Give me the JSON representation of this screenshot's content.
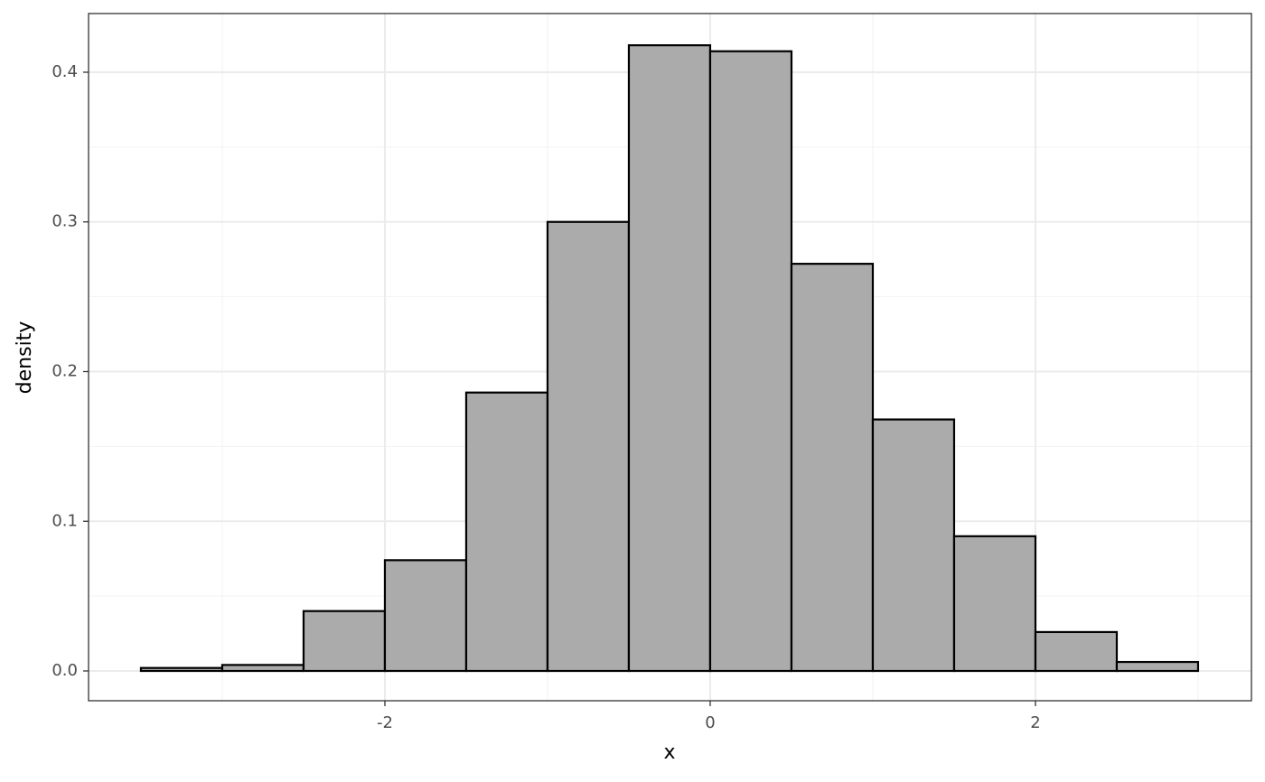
{
  "chart_data": {
    "type": "histogram",
    "bins": [
      -3.5,
      -3,
      -2.5,
      -2,
      -1.5,
      -1,
      -0.5,
      0,
      0.5,
      1,
      1.5,
      2,
      2.5,
      3
    ],
    "values": [
      0.002,
      0.004,
      0.04,
      0.074,
      0.186,
      0.3,
      0.418,
      0.414,
      0.272,
      0.168,
      0.09,
      0.026,
      0.006
    ],
    "color": "#ababab",
    "edgecolor": "#000000",
    "x_label": "x",
    "y_label": "density",
    "xlim": [
      -3.822,
      3.328
    ],
    "ylim": [
      -0.0199,
      0.4392
    ],
    "xticks": [
      -2,
      0,
      2
    ],
    "xminor": [
      -3,
      -1,
      1,
      3
    ],
    "yticks": [
      {
        "value": 0,
        "label": "0.0"
      },
      0.1,
      0.2,
      0.3,
      0.4
    ],
    "yminor": [
      0.05,
      0.15,
      0.25,
      0.35
    ],
    "grid": true
  }
}
